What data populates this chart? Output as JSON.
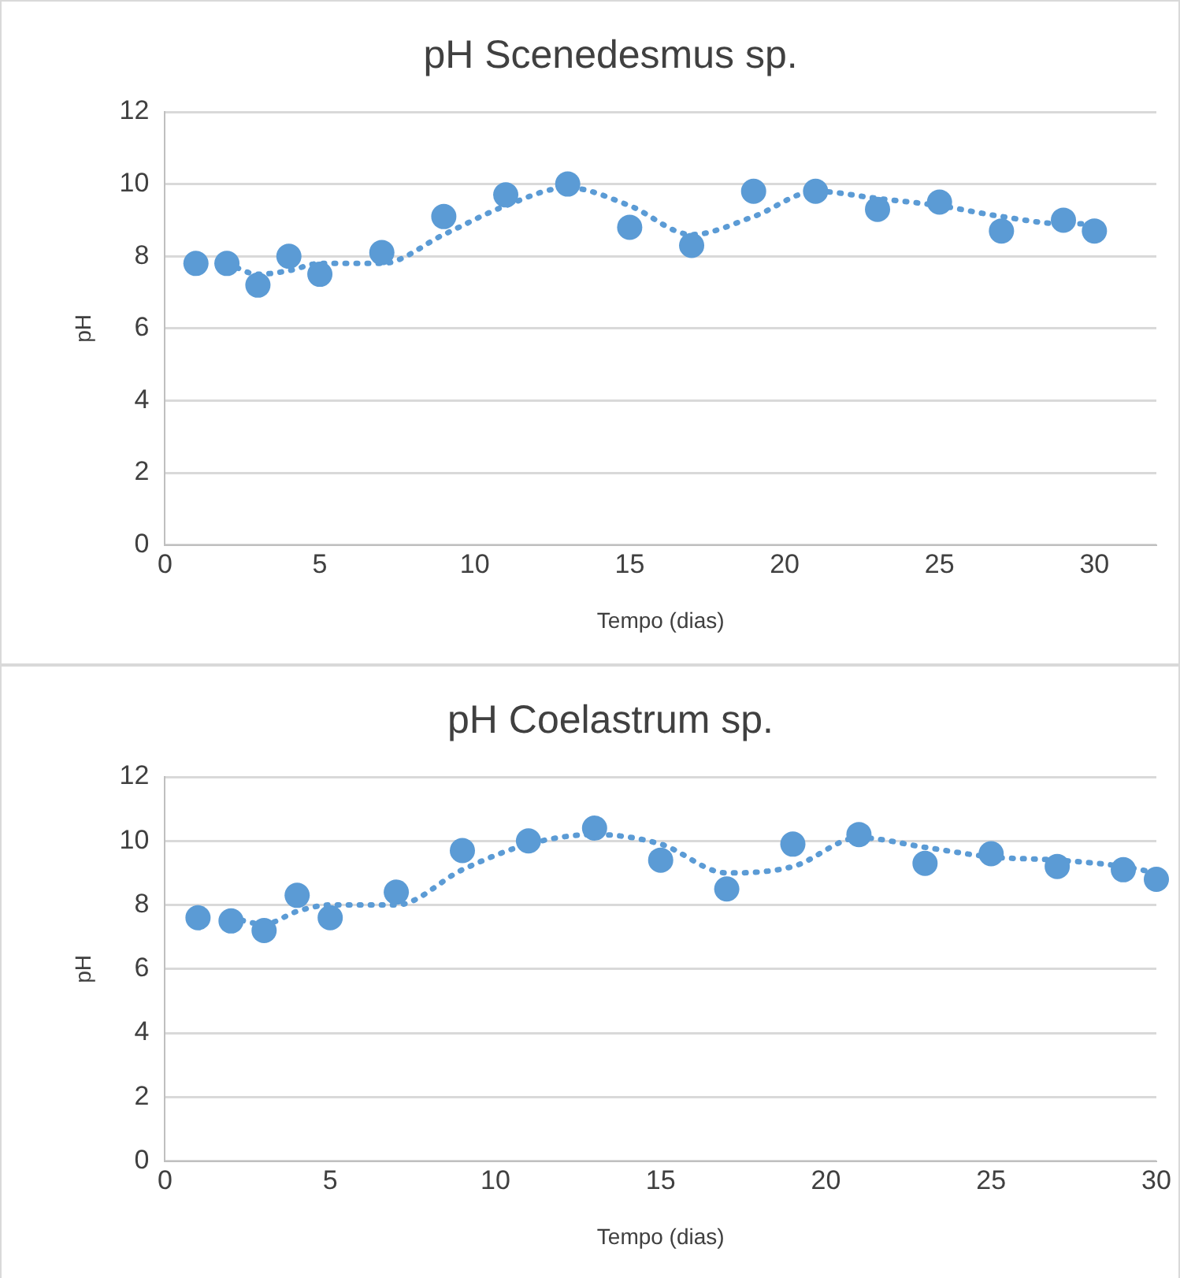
{
  "chart_data": [
    {
      "type": "scatter",
      "title": "pH Scenedesmus sp.",
      "xlabel": "Tempo (dias)",
      "ylabel": "pH",
      "xlim": [
        0,
        32
      ],
      "xticks": [
        0,
        5,
        10,
        15,
        20,
        25,
        30
      ],
      "ylim": [
        0,
        12
      ],
      "yticks": [
        0,
        2,
        4,
        6,
        8,
        10,
        12
      ],
      "grid": "y",
      "legend": false,
      "marker": "circle",
      "series": [
        {
          "type": "scatter",
          "color": "#5b9bd5",
          "x": [
            1,
            2,
            3,
            4,
            5,
            7,
            9,
            11,
            13,
            15,
            17,
            19,
            21,
            23,
            25,
            27,
            29,
            30
          ],
          "values": [
            7.8,
            7.8,
            7.2,
            8.0,
            7.5,
            8.1,
            9.1,
            9.7,
            10.0,
            8.8,
            8.3,
            9.8,
            9.8,
            9.3,
            9.5,
            8.7,
            9.0,
            8.7
          ]
        },
        {
          "type": "line",
          "line_style": "dotted",
          "marker": "none",
          "color": "#5b9bd5",
          "x": [
            2,
            3,
            4,
            5,
            7,
            9,
            11,
            13,
            15,
            17,
            19,
            21,
            23,
            25,
            27,
            29,
            30
          ],
          "values": [
            7.8,
            7.5,
            7.6,
            7.8,
            7.8,
            8.6,
            9.4,
            9.9,
            9.4,
            8.6,
            9.1,
            9.8,
            9.6,
            9.4,
            9.1,
            8.9,
            8.9
          ]
        }
      ]
    },
    {
      "type": "scatter",
      "title": "pH Coelastrum sp.",
      "xlabel": "Tempo (dias)",
      "ylabel": "pH",
      "xlim": [
        0,
        30
      ],
      "xticks": [
        0,
        5,
        10,
        15,
        20,
        25,
        30
      ],
      "ylim": [
        0,
        12
      ],
      "yticks": [
        0,
        2,
        4,
        6,
        8,
        10,
        12
      ],
      "grid": "y",
      "legend": false,
      "marker": "circle",
      "series": [
        {
          "type": "scatter",
          "color": "#5b9bd5",
          "x": [
            1,
            2,
            3,
            4,
            5,
            7,
            9,
            11,
            13,
            15,
            17,
            19,
            21,
            23,
            25,
            27,
            29,
            30
          ],
          "values": [
            7.6,
            7.5,
            7.2,
            8.3,
            7.6,
            8.4,
            9.7,
            10.0,
            10.4,
            9.4,
            8.5,
            9.9,
            10.2,
            9.3,
            9.6,
            9.2,
            9.1,
            8.8
          ]
        },
        {
          "type": "line",
          "line_style": "dotted",
          "marker": "none",
          "color": "#5b9bd5",
          "x": [
            2,
            3,
            4,
            5,
            7,
            9,
            11,
            13,
            15,
            17,
            19,
            21,
            23,
            25,
            27,
            29,
            30
          ],
          "values": [
            7.6,
            7.4,
            7.8,
            8.0,
            8.0,
            9.1,
            9.9,
            10.2,
            9.9,
            9.0,
            9.2,
            10.1,
            9.8,
            9.5,
            9.4,
            9.2,
            9.0
          ]
        }
      ]
    }
  ]
}
